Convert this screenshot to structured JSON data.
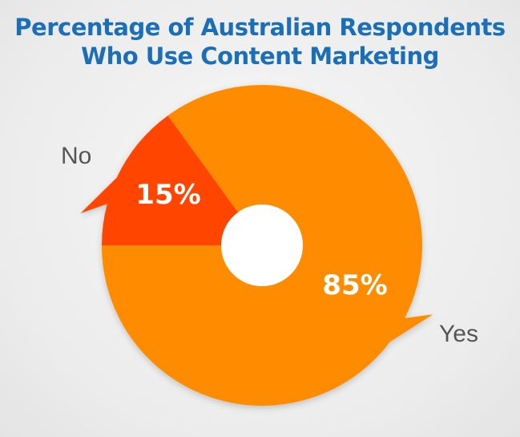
{
  "chart_data": {
    "type": "pie",
    "title": [
      "Percentage of Australian Respondents",
      "Who Use Content Marketing"
    ],
    "categories": [
      "Yes",
      "No"
    ],
    "values": [
      85,
      15
    ],
    "value_labels": [
      "85%",
      "15%"
    ],
    "colors": [
      "#ff8c00",
      "#ff4500"
    ],
    "legend": "none"
  }
}
